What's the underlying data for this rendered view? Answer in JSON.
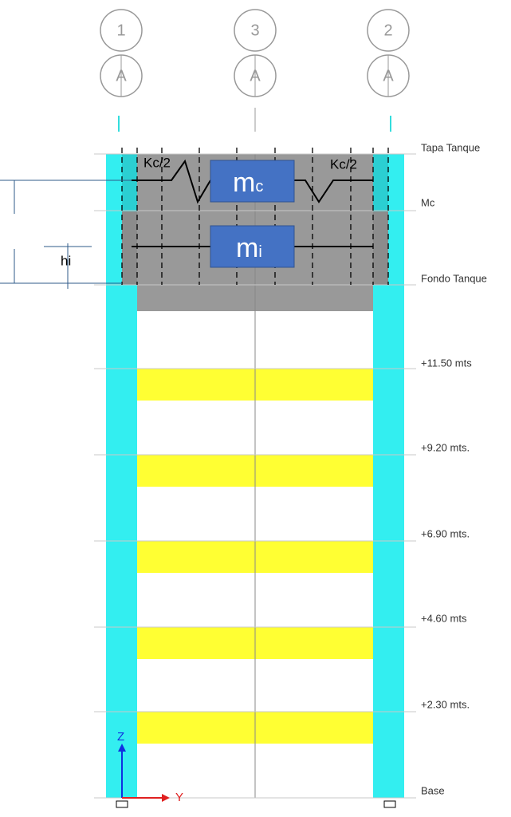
{
  "grid_lines": [
    {
      "number": "1",
      "letter": "A"
    },
    {
      "number": "3",
      "letter": "A"
    },
    {
      "number": "2",
      "letter": "A"
    }
  ],
  "levels": [
    "Tapa Tanque",
    "Mc",
    "Fondo Tanque",
    "+11.50 mts",
    "+9.20 mts.",
    "+6.90 mts.",
    "+4.60 mts",
    "+2.30 mts.",
    "Base"
  ],
  "springs": [
    "Kc/2",
    "Kc/2"
  ],
  "masses": [
    {
      "symbol": "m",
      "subscript": "c"
    },
    {
      "symbol": "m",
      "subscript": "i"
    }
  ],
  "dimension_label": "hi",
  "axes": {
    "z": "Z",
    "y": "Y"
  }
}
